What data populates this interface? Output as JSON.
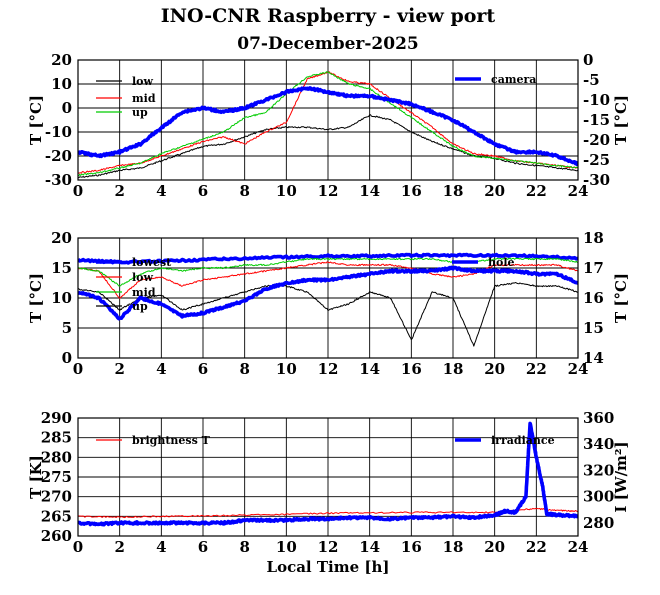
{
  "title": "INO-CNR Raspberry - view port",
  "subtitle": "07-December-2025",
  "chart_data": [
    {
      "type": "line",
      "xlabel": "",
      "xlim": [
        0,
        24
      ],
      "xticks": [
        0,
        2,
        4,
        6,
        8,
        10,
        12,
        14,
        16,
        18,
        20,
        22,
        24
      ],
      "ylabel_left": "T [°C]",
      "ylim_left": [
        -30,
        20
      ],
      "yticks_left": [
        -30,
        -20,
        -10,
        0,
        10,
        20
      ],
      "ylabel_right": "T [°C]",
      "ylim_right": [
        -30,
        0
      ],
      "yticks_right": [
        -30,
        -25,
        -20,
        -15,
        -10,
        -5,
        0
      ],
      "grid": true,
      "legend": "top-left and top-right",
      "series": [
        {
          "name": "low",
          "color": "#000000",
          "axis": "left",
          "x": [
            0,
            1,
            2,
            3,
            4,
            5,
            6,
            7,
            8,
            9,
            10,
            11,
            12,
            13,
            14,
            15,
            16,
            17,
            18,
            19,
            20,
            21,
            22,
            23,
            24
          ],
          "values": [
            -29,
            -28,
            -26,
            -25,
            -22,
            -19,
            -16,
            -15,
            -12,
            -9,
            -8,
            -8,
            -9,
            -8,
            -3,
            -5,
            -10,
            -14,
            -17,
            -20,
            -21,
            -23,
            -24,
            -25,
            -26
          ]
        },
        {
          "name": "mid",
          "color": "#ff0000",
          "axis": "left",
          "x": [
            0,
            1,
            2,
            3,
            4,
            5,
            6,
            7,
            8,
            9,
            10,
            11,
            12,
            13,
            14,
            15,
            16,
            17,
            18,
            19,
            20,
            21,
            22,
            23,
            24
          ],
          "values": [
            -27,
            -26,
            -24,
            -23,
            -20,
            -17,
            -14,
            -12,
            -15,
            -10,
            -6,
            12,
            15,
            11,
            10,
            4,
            -2,
            -8,
            -15,
            -19,
            -20,
            -22,
            -23,
            -24,
            -25
          ]
        },
        {
          "name": "up",
          "color": "#00cc00",
          "axis": "left",
          "x": [
            0,
            1,
            2,
            3,
            4,
            5,
            6,
            7,
            8,
            9,
            10,
            11,
            12,
            13,
            14,
            15,
            16,
            17,
            18,
            19,
            20,
            21,
            22,
            23,
            24
          ],
          "values": [
            -28,
            -27,
            -25,
            -23,
            -19,
            -16,
            -13,
            -10,
            -4,
            -2,
            6,
            13,
            15,
            10,
            8,
            2,
            -4,
            -10,
            -16,
            -20,
            -21,
            -22,
            -23,
            -24,
            -25
          ]
        },
        {
          "name": "camera",
          "color": "#0000ff",
          "axis": "right",
          "x": [
            0,
            1,
            2,
            3,
            4,
            5,
            6,
            7,
            8,
            9,
            10,
            11,
            12,
            13,
            14,
            15,
            16,
            17,
            18,
            19,
            20,
            21,
            22,
            23,
            24
          ],
          "values": [
            -23,
            -24,
            -23,
            -21,
            -17,
            -13,
            -12,
            -13,
            -12,
            -10,
            -8,
            -7,
            -8,
            -9,
            -9,
            -10,
            -11,
            -13,
            -15,
            -18,
            -21,
            -23,
            -23,
            -24,
            -26
          ]
        }
      ]
    },
    {
      "type": "line",
      "xlabel": "",
      "xlim": [
        0,
        24
      ],
      "xticks": [
        0,
        2,
        4,
        6,
        8,
        10,
        12,
        14,
        16,
        18,
        20,
        22,
        24
      ],
      "ylabel_left": "T [°C]",
      "ylim_left": [
        0,
        20
      ],
      "yticks_left": [
        0,
        5,
        10,
        15,
        20
      ],
      "ylabel_right": "T [°C]",
      "ylim_right": [
        14,
        18
      ],
      "yticks_right": [
        14,
        15,
        16,
        17,
        18
      ],
      "grid": true,
      "legend": "top-left and top-right",
      "series": [
        {
          "name": "lowest",
          "color": "#0000ff",
          "axis": "left",
          "x": [
            0,
            2,
            4,
            6,
            8,
            10,
            12,
            14,
            16,
            18,
            20,
            22,
            24
          ],
          "values": [
            16.3,
            16.0,
            16.1,
            16.4,
            16.6,
            16.8,
            17.0,
            17.0,
            17.1,
            17.1,
            17.1,
            17.0,
            16.6
          ]
        },
        {
          "name": "low",
          "color": "#ff0000",
          "axis": "left",
          "x": [
            0,
            1,
            2,
            3,
            4,
            5,
            6,
            7,
            8,
            9,
            10,
            11,
            12,
            13,
            14,
            15,
            16,
            17,
            18,
            19,
            20,
            21,
            22,
            23,
            24
          ],
          "values": [
            15,
            14.5,
            10,
            13,
            13.5,
            12,
            13,
            13.5,
            14,
            14.5,
            15,
            15.5,
            16,
            15.5,
            15.5,
            15.5,
            15,
            14,
            13.5,
            14,
            15.5,
            15.5,
            15.5,
            15.5,
            14.5
          ]
        },
        {
          "name": "mid",
          "color": "#00cc00",
          "axis": "left",
          "x": [
            0,
            1,
            2,
            3,
            4,
            5,
            6,
            7,
            8,
            9,
            10,
            11,
            12,
            13,
            14,
            15,
            16,
            17,
            18,
            19,
            20,
            21,
            22,
            23,
            24
          ],
          "values": [
            15,
            14.5,
            12,
            14,
            15,
            14.5,
            15,
            15,
            15.5,
            15.5,
            16,
            16.5,
            16.5,
            16.5,
            16.5,
            16.5,
            16.5,
            16.5,
            16,
            16,
            16.5,
            16.5,
            16.5,
            16.5,
            16
          ]
        },
        {
          "name": "up",
          "color": "#000000",
          "axis": "left",
          "x": [
            0,
            1,
            2,
            3,
            4,
            5,
            6,
            7,
            8,
            9,
            10,
            11,
            12,
            13,
            14,
            15,
            16,
            17,
            18,
            19,
            20,
            21,
            22,
            23,
            24
          ],
          "values": [
            11.5,
            11,
            8,
            10,
            10.5,
            8,
            9,
            10,
            11,
            12,
            12,
            11,
            8,
            9,
            11,
            10,
            3,
            11,
            10,
            2,
            12,
            12.5,
            12,
            12,
            11
          ]
        },
        {
          "name": "hole",
          "color": "#0000ff",
          "axis": "right",
          "x": [
            0,
            1,
            2,
            3,
            4,
            5,
            6,
            7,
            8,
            9,
            10,
            11,
            12,
            13,
            14,
            15,
            16,
            17,
            18,
            19,
            20,
            21,
            22,
            23,
            24
          ],
          "values": [
            16.2,
            16.0,
            15.3,
            16.0,
            15.8,
            15.4,
            15.5,
            15.7,
            15.9,
            16.3,
            16.5,
            16.6,
            16.6,
            16.7,
            16.8,
            16.9,
            16.9,
            16.9,
            17.0,
            16.9,
            16.9,
            16.9,
            16.8,
            16.8,
            16.5
          ]
        }
      ]
    },
    {
      "type": "line",
      "xlabel": "Local Time [h]",
      "xlim": [
        0,
        24
      ],
      "xticks": [
        0,
        2,
        4,
        6,
        8,
        10,
        12,
        14,
        16,
        18,
        20,
        22,
        24
      ],
      "ylabel_left": "T [K]",
      "ylim_left": [
        260,
        290
      ],
      "yticks_left": [
        260,
        265,
        270,
        275,
        280,
        285,
        290
      ],
      "ylabel_right": "I [W/m²]",
      "ylim_right": [
        270,
        360
      ],
      "yticks_right": [
        280,
        300,
        320,
        340,
        360
      ],
      "grid": true,
      "legend": "top-left and top-right",
      "series": [
        {
          "name": "brightness T",
          "color": "#ff0000",
          "axis": "left",
          "x": [
            0,
            2,
            4,
            6,
            8,
            10,
            12,
            14,
            16,
            18,
            20,
            21,
            22,
            23,
            24
          ],
          "values": [
            265,
            264.8,
            265,
            265.1,
            265.3,
            265.5,
            265.8,
            265.9,
            266.0,
            266.0,
            266.0,
            266.5,
            267,
            266.5,
            266.3
          ]
        },
        {
          "name": "irradiance",
          "color": "#0000ff",
          "axis": "right",
          "x": [
            0,
            1,
            2,
            3,
            4,
            5,
            6,
            7,
            8,
            9,
            10,
            11,
            12,
            13,
            14,
            15,
            16,
            17,
            18,
            19,
            20,
            20.5,
            21,
            21.5,
            21.7,
            22,
            22.3,
            22.5,
            23,
            24
          ],
          "values": [
            280,
            279,
            280,
            280,
            280,
            280,
            280,
            280,
            282,
            282,
            282,
            283,
            283,
            284,
            284,
            283,
            284,
            284,
            285,
            284,
            286,
            289,
            288,
            300,
            356,
            330,
            308,
            287,
            286,
            285
          ]
        }
      ]
    }
  ]
}
